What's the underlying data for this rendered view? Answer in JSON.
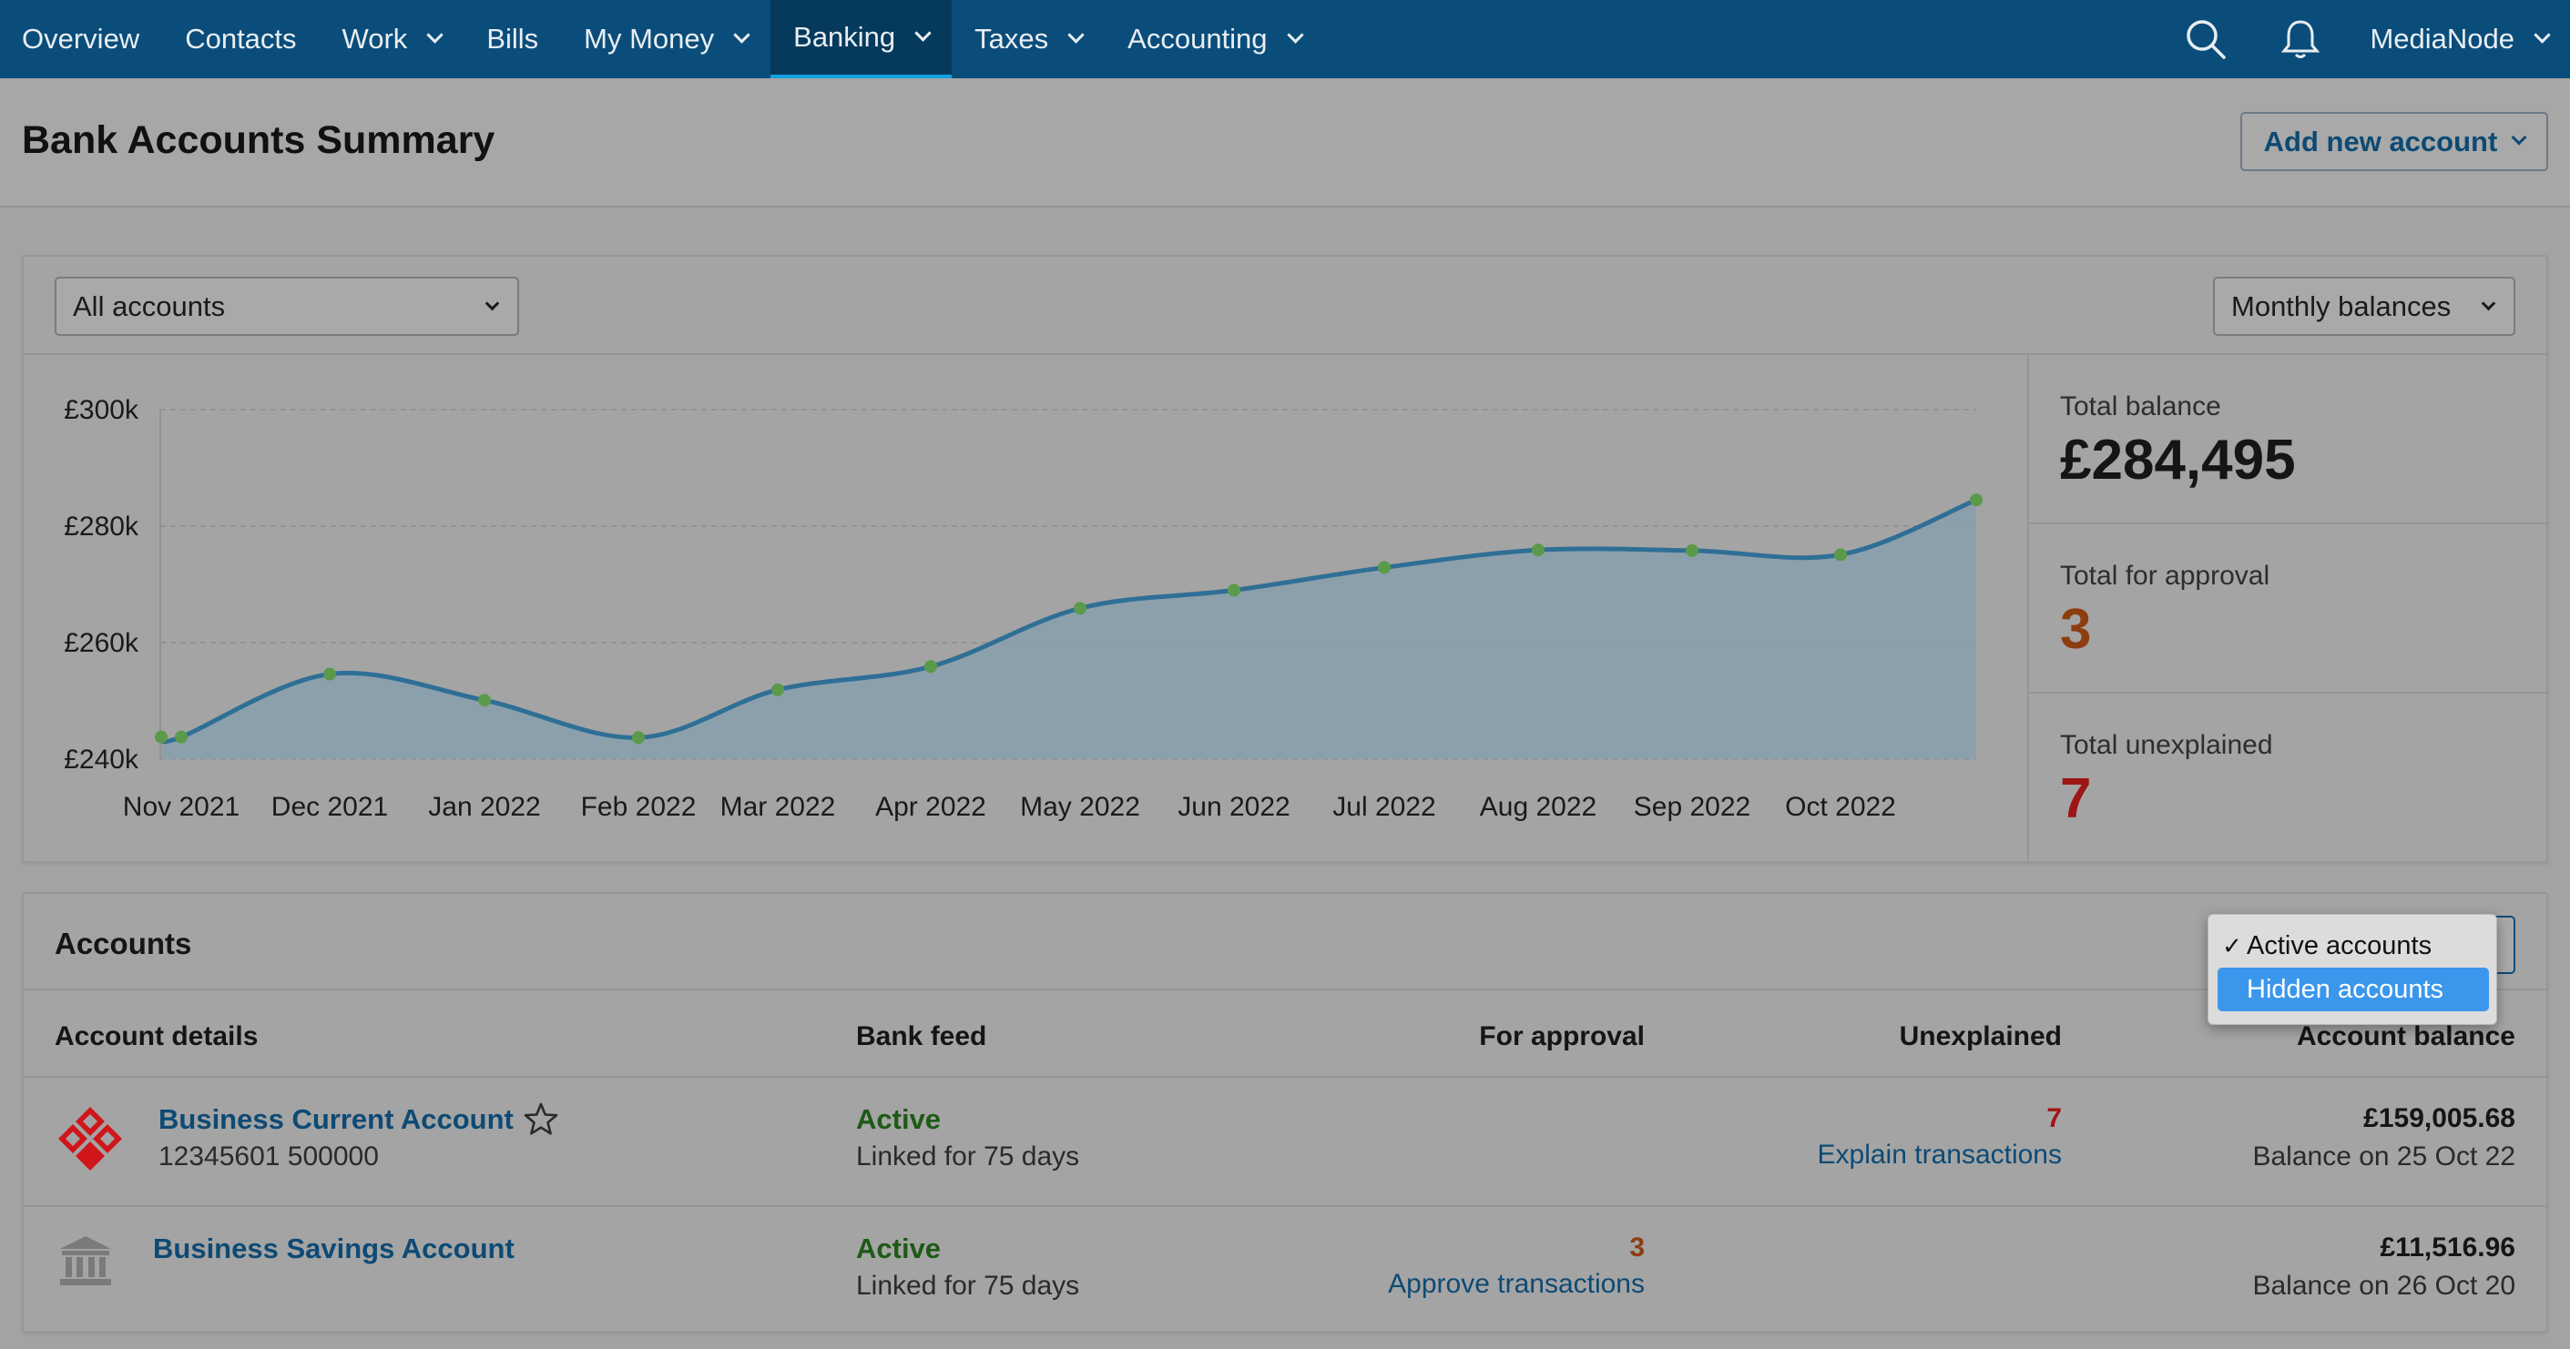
{
  "nav": {
    "items": [
      {
        "label": "Overview",
        "dropdown": false,
        "active": false
      },
      {
        "label": "Contacts",
        "dropdown": false,
        "active": false
      },
      {
        "label": "Work",
        "dropdown": true,
        "active": false
      },
      {
        "label": "Bills",
        "dropdown": false,
        "active": false
      },
      {
        "label": "My Money",
        "dropdown": true,
        "active": false
      },
      {
        "label": "Banking",
        "dropdown": true,
        "active": true
      },
      {
        "label": "Taxes",
        "dropdown": true,
        "active": false
      },
      {
        "label": "Accounting",
        "dropdown": true,
        "active": false
      }
    ],
    "company": "MediaNode",
    "search_icon": "search-icon",
    "bell_icon": "bell-icon"
  },
  "header": {
    "title": "Bank Accounts Summary",
    "add_button": "Add new account"
  },
  "summary": {
    "account_select": "All accounts",
    "period_select": "Monthly balances",
    "stats": [
      {
        "label": "Total balance",
        "value": "£284,495",
        "color": "#151515"
      },
      {
        "label": "Total for approval",
        "value": "3",
        "color": "#8c3d10"
      },
      {
        "label": "Total unexplained",
        "value": "7",
        "color": "#9e1515"
      }
    ]
  },
  "chart_data": {
    "type": "area",
    "x": [
      "Nov 2021",
      "Dec 2021",
      "Jan 2022",
      "Feb 2022",
      "Mar 2022",
      "Apr 2022",
      "May 2022",
      "Jun 2022",
      "Jul 2022",
      "Aug 2022",
      "Sep 2022",
      "Oct 2022"
    ],
    "points": [
      {
        "x": "Nov 2021",
        "y": 243800
      },
      {
        "x": "Nov 2021",
        "y": 243800
      },
      {
        "x": "Dec 2021",
        "y": 254600
      },
      {
        "x": "Jan 2022",
        "y": 250100
      },
      {
        "x": "Feb 2022",
        "y": 243700
      },
      {
        "x": "Mar 2022",
        "y": 251900
      },
      {
        "x": "Apr 2022",
        "y": 255900
      },
      {
        "x": "May 2022",
        "y": 265900
      },
      {
        "x": "Jun 2022",
        "y": 269000
      },
      {
        "x": "Jul 2022",
        "y": 272900
      },
      {
        "x": "Aug 2022",
        "y": 275900
      },
      {
        "x": "Sep 2022",
        "y": 275800
      },
      {
        "x": "Oct 2022",
        "y": 275100
      },
      {
        "x": "",
        "y": 284500
      }
    ],
    "y_ticks": [
      "£300k",
      "£280k",
      "£260k",
      "£240k"
    ],
    "ylim": [
      240000,
      300000
    ],
    "line_color": "#2f6f96",
    "fill_color": "#8aa0ad",
    "point_color": "#5a9a4a",
    "grid": true
  },
  "accounts": {
    "title": "Accounts",
    "filter_menu": [
      {
        "label": "Active accounts",
        "checked": true,
        "highlighted": false
      },
      {
        "label": "Hidden accounts",
        "checked": false,
        "highlighted": true
      }
    ],
    "columns": [
      "Account details",
      "Bank feed",
      "For approval",
      "Unexplained",
      "Account balance"
    ],
    "rows": [
      {
        "name": "Business Current Account",
        "number": "12345601 500000",
        "logo_icon": "natwest-logo-icon",
        "starred_icon": "star-icon",
        "feed_status": "Active",
        "feed_linked": "Linked for 75 days",
        "for_approval": "",
        "approval_link": "",
        "unexplained": "7",
        "unexplained_link": "Explain transactions",
        "balance": "£159,005.68",
        "balance_date": "Balance on 25 Oct 22"
      },
      {
        "name": "Business Savings Account",
        "number": "",
        "logo_icon": "bank-building-icon",
        "feed_status": "Active",
        "feed_linked": "Linked for 75 days",
        "for_approval": "3",
        "approval_link": "Approve transactions",
        "unexplained": "",
        "unexplained_link": "",
        "balance": "£11,516.96",
        "balance_date": "Balance on 26 Oct 20"
      }
    ]
  }
}
